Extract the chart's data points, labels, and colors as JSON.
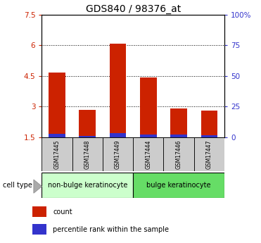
{
  "title": "GDS840 / 98376_at",
  "samples": [
    "GSM17445",
    "GSM17448",
    "GSM17449",
    "GSM17444",
    "GSM17446",
    "GSM17447"
  ],
  "red_values": [
    4.65,
    2.85,
    6.08,
    4.42,
    2.92,
    2.82
  ],
  "blue_values": [
    0.18,
    0.08,
    0.2,
    0.15,
    0.12,
    0.1
  ],
  "bar_bottom": 1.5,
  "ylim_left": [
    1.5,
    7.5
  ],
  "ylim_right": [
    0,
    100
  ],
  "yticks_left": [
    1.5,
    3.0,
    4.5,
    6.0,
    7.5
  ],
  "ytick_labels_left": [
    "1.5",
    "3",
    "4.5",
    "6",
    "7.5"
  ],
  "yticks_right": [
    0,
    25,
    50,
    75,
    100
  ],
  "ytick_labels_right": [
    "0",
    "25",
    "50",
    "75",
    "100%"
  ],
  "group1_label": "non-bulge keratinocyte",
  "group2_label": "bulge keratinocyte",
  "cell_type_label": "cell type",
  "legend_count": "count",
  "legend_percentile": "percentile rank within the sample",
  "red_color": "#cc2200",
  "blue_color": "#3333cc",
  "group1_color": "#ccffcc",
  "group2_color": "#66dd66",
  "tick_bg_color": "#cccccc",
  "title_fontsize": 10,
  "tick_fontsize": 7.5,
  "bar_width": 0.55
}
